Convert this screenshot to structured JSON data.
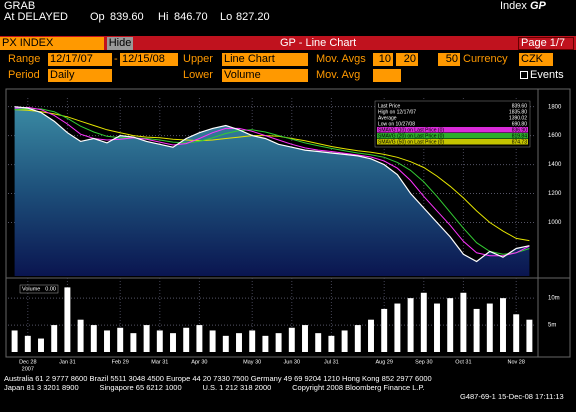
{
  "header": {
    "ticker": "GRAB",
    "index_label": "Index",
    "function": "GP",
    "status": "At DELAYED",
    "open_label": "Op",
    "open": "839.60",
    "high_label": "Hi",
    "high": "846.70",
    "low_label": "Lo",
    "low": "827.20"
  },
  "toolbar": {
    "security": "PX INDEX",
    "hide_button": "Hide",
    "title": "GP - Line Chart",
    "page": "Page 1/7"
  },
  "controls": {
    "range_label": "Range",
    "start_date": "12/17/07",
    "dash": "-",
    "end_date": "12/15/08",
    "upper_label": "Upper",
    "upper": "Line Chart",
    "mov_avgs_label": "Mov. Avgs",
    "mov_avgs": [
      "10",
      "20",
      "50"
    ],
    "currency_label": "Currency",
    "currency": "CZK",
    "events_label": "Events",
    "period_label": "Period",
    "period": "Daily",
    "lower_label": "Lower",
    "lower": "Volume",
    "mov_avg_label": "Mov. Avg"
  },
  "chart_data": [
    {
      "type": "line",
      "grid": true,
      "categories": [
        null,
        "Dec 28",
        null,
        null,
        "Jan 31",
        null,
        null,
        null,
        "Feb 29",
        null,
        null,
        "Mar 31",
        null,
        null,
        "Apr 30",
        null,
        null,
        null,
        "May 30",
        null,
        null,
        "Jun 30",
        null,
        null,
        "Jul 31",
        null,
        null,
        null,
        "Aug 29",
        null,
        null,
        "Sep 30",
        null,
        null,
        "Oct 31",
        null,
        null,
        null,
        "Nov 28",
        null
      ],
      "first_year": "2007",
      "ylim": [
        630,
        1860
      ],
      "yticks": [
        1000,
        1200,
        1400,
        1600,
        1800
      ],
      "series": [
        {
          "name": "Last Price",
          "color": "#ffffff",
          "last_label": "839.60",
          "values": [
            1800,
            1790,
            1760,
            1700,
            1620,
            1560,
            1580,
            1550,
            1600,
            1590,
            1560,
            1540,
            1520,
            1580,
            1620,
            1650,
            1670,
            1640,
            1600,
            1580,
            1540,
            1520,
            1500,
            1490,
            1480,
            1470,
            1460,
            1440,
            1400,
            1330,
            1200,
            1100,
            1000,
            900,
            780,
            730,
            800,
            760,
            820,
            839.6
          ]
        },
        {
          "name": "SMAVG (10) on Last Price (0)",
          "color": "#ff33ff",
          "last_label": "836.90",
          "values": [
            1790,
            1795,
            1780,
            1740,
            1680,
            1610,
            1580,
            1570,
            1575,
            1585,
            1575,
            1555,
            1535,
            1545,
            1580,
            1620,
            1650,
            1650,
            1630,
            1600,
            1570,
            1540,
            1515,
            1500,
            1490,
            1478,
            1466,
            1452,
            1425,
            1375,
            1290,
            1180,
            1080,
            980,
            870,
            790,
            770,
            770,
            790,
            836.9
          ]
        },
        {
          "name": "SMAVG (20) on Last Price (0)",
          "color": "#33cc33",
          "last_label": "819.84",
          "values": [
            1780,
            1785,
            1785,
            1765,
            1720,
            1665,
            1625,
            1595,
            1585,
            1585,
            1580,
            1570,
            1555,
            1550,
            1560,
            1585,
            1615,
            1635,
            1640,
            1625,
            1600,
            1575,
            1550,
            1530,
            1512,
            1495,
            1480,
            1468,
            1450,
            1415,
            1360,
            1280,
            1180,
            1070,
            960,
            860,
            800,
            780,
            790,
            819.84
          ]
        },
        {
          "name": "SMAVG (50) on Last Price (0)",
          "color": "#e6e600",
          "last_label": "874.73",
          "values": [
            1780,
            1775,
            1765,
            1750,
            1730,
            1700,
            1670,
            1640,
            1620,
            1600,
            1590,
            1585,
            1575,
            1570,
            1565,
            1570,
            1580,
            1590,
            1600,
            1600,
            1595,
            1580,
            1565,
            1545,
            1525,
            1510,
            1495,
            1485,
            1470,
            1450,
            1420,
            1380,
            1320,
            1250,
            1170,
            1080,
            1000,
            940,
            890,
            874.73
          ]
        }
      ],
      "stats": [
        {
          "label": "High on 12/17/07",
          "value": "1835.80"
        },
        {
          "label": "Average",
          "value": "1390.02"
        },
        {
          "label": "Low on 10/27/08",
          "value": "690.80"
        }
      ]
    },
    {
      "type": "bar",
      "name": "Volume",
      "last_label": "0.00",
      "color": "#ffffff",
      "ylim": [
        0,
        13000000
      ],
      "yticks": [
        {
          "value": 5000000,
          "label": "5m"
        },
        {
          "value": 10000000,
          "label": "10m"
        }
      ],
      "values": [
        4000000,
        3000000,
        2500000,
        5000000,
        12000000,
        6000000,
        5000000,
        4000000,
        4500000,
        3500000,
        5000000,
        4000000,
        3500000,
        4500000,
        5000000,
        4000000,
        3000000,
        3500000,
        4000000,
        3000000,
        3500000,
        4500000,
        5000000,
        3500000,
        3000000,
        4000000,
        5000000,
        6000000,
        8000000,
        9000000,
        10000000,
        11000000,
        9000000,
        10000000,
        11000000,
        8000000,
        9000000,
        10000000,
        7000000,
        6000000
      ]
    }
  ],
  "footer": {
    "lines": [
      "Australia 61 2 9777 8600 Brazil 5511 3048 4500 Europe 44 20 7330 7500 Germany 49 69 9204 1210 Hong Kong 852 2977 6000",
      "Japan 81 3 3201 8900          Singapore 65 6212 1000          U.S. 1 212 318 2000          Copyright 2008 Bloomberg Finance L.P."
    ],
    "stamp": "G487-69-1 15-Dec-08 17:11:13"
  }
}
